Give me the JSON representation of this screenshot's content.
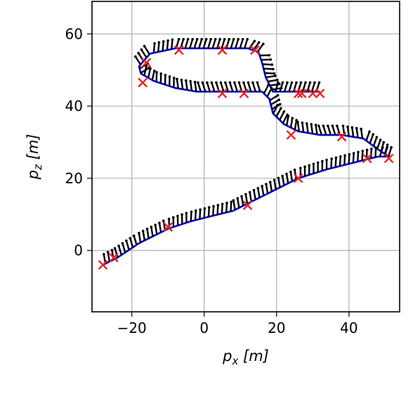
{
  "chart_data": {
    "type": "line",
    "xlabel": "p_x [m]",
    "ylabel": "p_z [m]",
    "xlabel_main": "p",
    "xlabel_sub": "x",
    "xlabel_unit": " [m]",
    "ylabel_main": "p",
    "ylabel_sub": "z",
    "ylabel_unit": " [m]",
    "xlim": [
      -31,
      54
    ],
    "ylim": [
      -17,
      69
    ],
    "xticks": [
      -20,
      0,
      20,
      40
    ],
    "xtick_labels": [
      "−20",
      "0",
      "20",
      "40"
    ],
    "yticks": [
      0,
      20,
      40,
      60
    ],
    "ytick_labels": [
      "0",
      "20",
      "40",
      "60"
    ],
    "grid": true,
    "colors": {
      "path": "#0000cc",
      "waypoint": "#ee2222",
      "arrow": "#000000",
      "grid": "#b0b0b0"
    },
    "series": [
      {
        "kind": "path",
        "x": [
          -28,
          -24,
          -18,
          -10,
          -4,
          2,
          8,
          12,
          18,
          26,
          34,
          42,
          48,
          51,
          48,
          44,
          38,
          32,
          26,
          22,
          19,
          18,
          16,
          14,
          10,
          4,
          -2,
          -8,
          -14,
          -17.5,
          -18,
          -15,
          -8,
          0,
          6,
          12,
          15,
          16,
          17,
          19,
          24,
          30,
          32
        ],
        "y": [
          -4,
          -2,
          2,
          6,
          8,
          9.5,
          11,
          13,
          16,
          20,
          22.5,
          24.5,
          26,
          26,
          28,
          31,
          32,
          32,
          33,
          35,
          38,
          42,
          44,
          44,
          44,
          44,
          44,
          45,
          47,
          49,
          51,
          54.5,
          56,
          56,
          56,
          56,
          55,
          52,
          48,
          44,
          44,
          44,
          44
        ]
      },
      {
        "kind": "waypoints",
        "x": [
          -28,
          -25,
          -10,
          12,
          26,
          45,
          51,
          38,
          24,
          26,
          27,
          30,
          32,
          11,
          5,
          -17,
          -16,
          -7,
          5,
          14
        ],
        "y": [
          -4,
          -2,
          6.5,
          12.5,
          20,
          25.5,
          25.5,
          31.5,
          32,
          43.5,
          43.5,
          43.5,
          43.5,
          43.5,
          43.5,
          46.5,
          52,
          55.5,
          55.5,
          55.5
        ]
      }
    ]
  }
}
